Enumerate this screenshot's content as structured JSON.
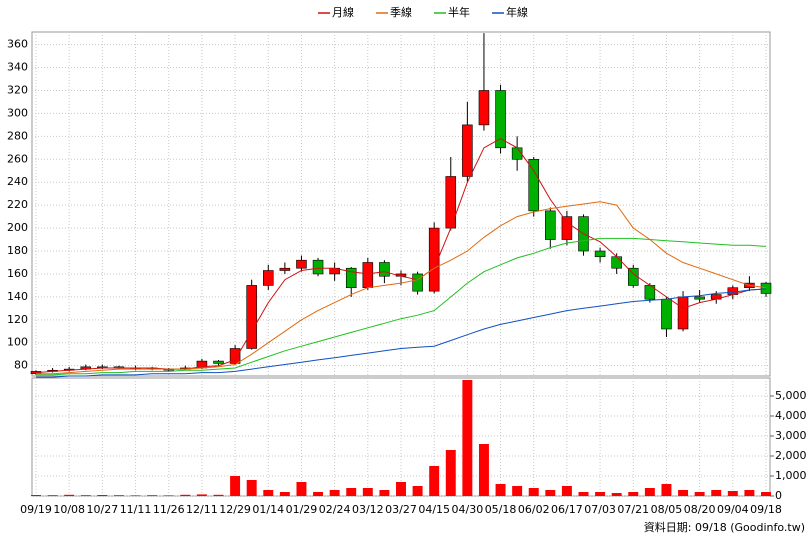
{
  "chart_data": {
    "type": "candlestick",
    "categories": [
      "09/19",
      null,
      "10/08",
      null,
      "10/27",
      null,
      "11/11",
      null,
      "11/26",
      null,
      "12/11",
      null,
      "12/29",
      null,
      "01/14",
      null,
      "01/29",
      null,
      "02/24",
      null,
      "03/12",
      null,
      "03/27",
      null,
      "04/15",
      null,
      "04/30",
      null,
      "05/18",
      null,
      "06/02",
      null,
      "06/17",
      null,
      "07/03",
      null,
      "07/21",
      null,
      "08/05",
      null,
      "08/20",
      null,
      "09/04",
      null,
      "09/18"
    ],
    "ohlc": {
      "up_color": "#ff0000",
      "down_color": "#00b000",
      "open": [
        73,
        75,
        76,
        77,
        79,
        79,
        78,
        78,
        77,
        77,
        78,
        84,
        82,
        95,
        150,
        163,
        165,
        172,
        160,
        165,
        148,
        170,
        158,
        160,
        145,
        200,
        245,
        290,
        320,
        270,
        260,
        215,
        190,
        210,
        180,
        175,
        165,
        150,
        138,
        112,
        140,
        138,
        142,
        148,
        152
      ],
      "high": [
        76,
        78,
        79,
        81,
        81,
        80,
        80,
        79,
        78,
        80,
        86,
        85,
        98,
        155,
        168,
        170,
        176,
        174,
        170,
        166,
        174,
        172,
        163,
        162,
        205,
        262,
        310,
        370,
        325,
        280,
        262,
        218,
        215,
        212,
        183,
        178,
        168,
        152,
        140,
        145,
        146,
        145,
        150,
        158,
        153
      ],
      "low": [
        72,
        74,
        75,
        76,
        77,
        77,
        76,
        76,
        75,
        76,
        77,
        80,
        81,
        94,
        146,
        160,
        162,
        158,
        154,
        140,
        146,
        152,
        150,
        142,
        143,
        198,
        240,
        285,
        265,
        250,
        210,
        182,
        185,
        176,
        170,
        160,
        148,
        135,
        105,
        110,
        135,
        134,
        138,
        145,
        140
      ],
      "close": [
        75,
        76,
        77,
        79,
        79,
        78,
        78,
        77,
        77,
        78,
        84,
        82,
        95,
        150,
        163,
        165,
        172,
        160,
        165,
        148,
        170,
        158,
        160,
        145,
        200,
        245,
        290,
        320,
        270,
        260,
        215,
        190,
        210,
        180,
        175,
        165,
        150,
        138,
        112,
        140,
        138,
        142,
        148,
        152,
        143
      ]
    },
    "series": [
      {
        "name": "月線",
        "color": "#d01010",
        "values": [
          74,
          75,
          76,
          77,
          78,
          78,
          78,
          78,
          77,
          77,
          79,
          80,
          85,
          110,
          135,
          155,
          163,
          165,
          165,
          162,
          160,
          162,
          158,
          155,
          165,
          200,
          240,
          270,
          278,
          270,
          250,
          225,
          205,
          195,
          188,
          175,
          160,
          150,
          140,
          130,
          135,
          138,
          142,
          146,
          147
        ]
      },
      {
        "name": "季線",
        "color": "#e06a10",
        "values": [
          73,
          73,
          74,
          75,
          76,
          77,
          77,
          77,
          77,
          77,
          78,
          79,
          81,
          90,
          100,
          110,
          120,
          128,
          135,
          142,
          148,
          150,
          152,
          155,
          165,
          172,
          180,
          192,
          202,
          210,
          214,
          217,
          219,
          221,
          223,
          220,
          200,
          190,
          178,
          170,
          165,
          160,
          155,
          150,
          148
        ]
      },
      {
        "name": "半年",
        "color": "#20c020",
        "values": [
          72,
          72,
          73,
          73,
          74,
          74,
          75,
          75,
          75,
          76,
          76,
          77,
          78,
          83,
          88,
          93,
          97,
          101,
          105,
          109,
          113,
          117,
          121,
          124,
          128,
          140,
          152,
          162,
          168,
          174,
          178,
          183,
          187,
          189,
          191,
          191,
          191,
          190,
          189,
          188,
          187,
          186,
          185,
          185,
          184
        ]
      },
      {
        "name": "年線",
        "color": "#1050c0",
        "values": [
          70,
          70,
          71,
          71,
          72,
          72,
          72,
          73,
          73,
          73,
          74,
          74,
          75,
          77,
          79,
          81,
          83,
          85,
          87,
          89,
          91,
          93,
          95,
          96,
          97,
          102,
          107,
          112,
          116,
          119,
          122,
          125,
          128,
          130,
          132,
          134,
          136,
          137,
          138,
          140,
          141,
          143,
          144,
          146,
          147
        ]
      }
    ],
    "ylim": [
      71,
      371
    ],
    "yticks": [
      80,
      100,
      120,
      140,
      160,
      180,
      200,
      220,
      240,
      260,
      280,
      300,
      320,
      340,
      360
    ],
    "grid": true,
    "volume": {
      "color": "#ff0000",
      "values": [
        50,
        40,
        60,
        40,
        50,
        40,
        30,
        40,
        30,
        60,
        80,
        60,
        1000,
        800,
        300,
        200,
        700,
        200,
        300,
        400,
        400,
        300,
        700,
        500,
        1500,
        2300,
        5800,
        2600,
        600,
        500,
        400,
        300,
        500,
        200,
        200,
        150,
        200,
        400,
        600,
        300,
        200,
        300,
        250,
        300,
        200
      ],
      "ylim": [
        0,
        5900
      ],
      "yticks": [
        0,
        {
          "value": 1000,
          "label": "1,000"
        },
        {
          "value": 2000,
          "label": "2,000"
        },
        {
          "value": 3000,
          "label": "3,000"
        },
        {
          "value": 4000,
          "label": "4,000"
        },
        {
          "value": 5000,
          "label": "5,000"
        }
      ]
    },
    "source_note": "資料日期: 09/18 (Goodinfo.tw)"
  }
}
